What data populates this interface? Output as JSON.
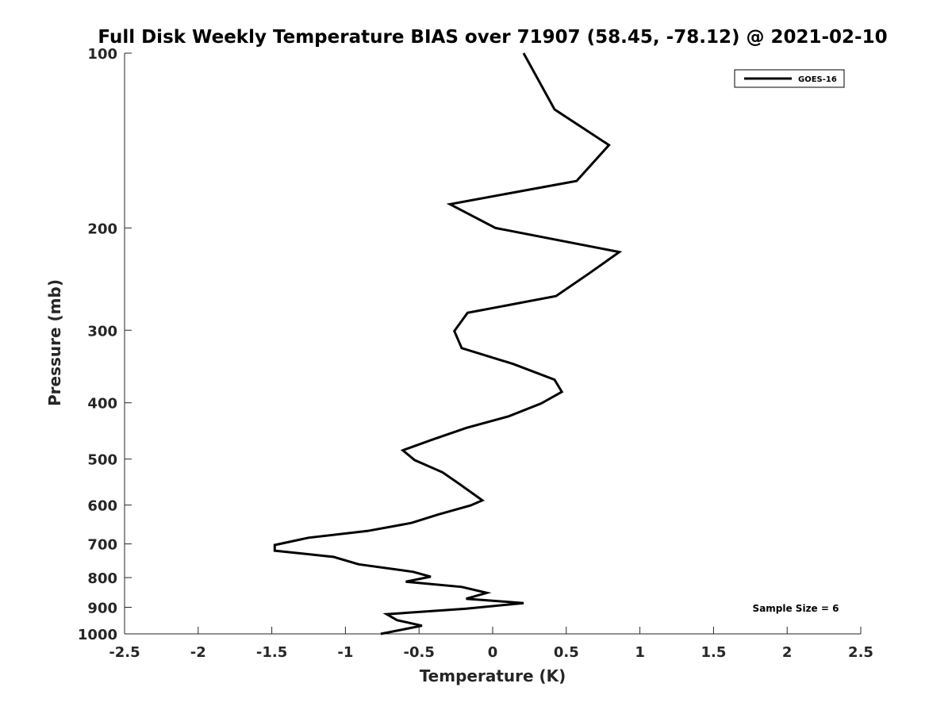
{
  "chart_data": {
    "type": "line",
    "title": "Full Disk Weekly Temperature BIAS over 71907 (58.45, -78.12) @ 2021-02-10",
    "xlabel": "Temperature (K)",
    "ylabel": "Pressure (mb)",
    "xlim": [
      -2.5,
      2.5
    ],
    "ylim": [
      1000,
      100
    ],
    "y_scale": "log",
    "y_reversed": true,
    "x_ticks": [
      "-2.5",
      "-2",
      "-1.5",
      "-1",
      "-0.5",
      "0",
      "0.5",
      "1",
      "1.5",
      "2",
      "2.5"
    ],
    "y_ticks": [
      "100",
      "200",
      "300",
      "400",
      "500",
      "600",
      "700",
      "800",
      "900",
      "1000"
    ],
    "legend_position": "top-right",
    "annotation": "Sample Size = 6",
    "series": [
      {
        "name": "GOES-16",
        "color": "#000000",
        "points": [
          {
            "x": 0.21,
            "p": 100
          },
          {
            "x": 0.42,
            "p": 125
          },
          {
            "x": 0.79,
            "p": 144
          },
          {
            "x": 0.57,
            "p": 166
          },
          {
            "x": -0.29,
            "p": 182
          },
          {
            "x": 0.02,
            "p": 200
          },
          {
            "x": 0.86,
            "p": 220
          },
          {
            "x": 0.65,
            "p": 240
          },
          {
            "x": 0.43,
            "p": 262
          },
          {
            "x": -0.17,
            "p": 280
          },
          {
            "x": -0.26,
            "p": 301
          },
          {
            "x": -0.21,
            "p": 322
          },
          {
            "x": 0.14,
            "p": 343
          },
          {
            "x": 0.42,
            "p": 365
          },
          {
            "x": 0.47,
            "p": 383
          },
          {
            "x": 0.33,
            "p": 401
          },
          {
            "x": 0.11,
            "p": 422
          },
          {
            "x": -0.18,
            "p": 442
          },
          {
            "x": -0.41,
            "p": 463
          },
          {
            "x": -0.61,
            "p": 483
          },
          {
            "x": -0.53,
            "p": 502
          },
          {
            "x": -0.34,
            "p": 527
          },
          {
            "x": -0.23,
            "p": 551
          },
          {
            "x": -0.07,
            "p": 589
          },
          {
            "x": -0.15,
            "p": 601
          },
          {
            "x": -0.37,
            "p": 623
          },
          {
            "x": -0.55,
            "p": 644
          },
          {
            "x": -0.85,
            "p": 665
          },
          {
            "x": -1.25,
            "p": 683
          },
          {
            "x": -1.48,
            "p": 703
          },
          {
            "x": -1.48,
            "p": 719
          },
          {
            "x": -1.08,
            "p": 737
          },
          {
            "x": -0.91,
            "p": 759
          },
          {
            "x": -0.54,
            "p": 782
          },
          {
            "x": -0.42,
            "p": 797
          },
          {
            "x": -0.59,
            "p": 813
          },
          {
            "x": -0.21,
            "p": 830
          },
          {
            "x": -0.04,
            "p": 850
          },
          {
            "x": -0.18,
            "p": 870
          },
          {
            "x": 0.21,
            "p": 885
          },
          {
            "x": -0.18,
            "p": 905
          },
          {
            "x": -0.72,
            "p": 925
          },
          {
            "x": -0.65,
            "p": 947
          },
          {
            "x": -0.48,
            "p": 968
          },
          {
            "x": -0.76,
            "p": 1000
          }
        ]
      }
    ]
  }
}
